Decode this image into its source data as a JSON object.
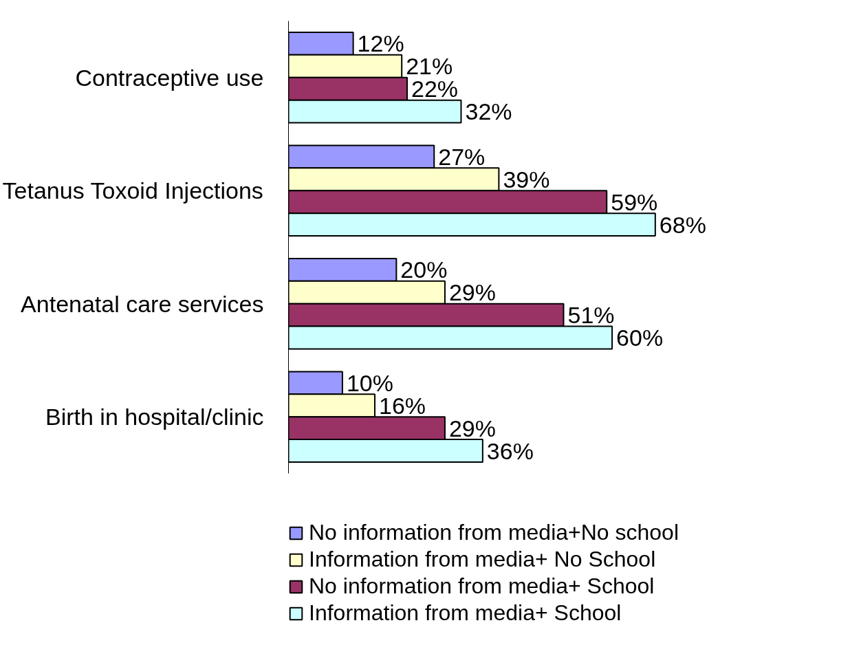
{
  "chart_data": {
    "type": "bar",
    "orientation": "horizontal",
    "categories": [
      "Contraceptive use",
      "Tetanus Toxoid Injections",
      "Antenatal care services",
      "Birth in hospital/clinic"
    ],
    "series": [
      {
        "name": "No information from media+No school",
        "color": "#9999ff",
        "values": [
          12,
          27,
          20,
          10
        ],
        "value_labels": [
          "12%",
          "27%",
          "20%",
          "10%"
        ]
      },
      {
        "name": "Information from media+ No School",
        "color": "#ffffcc",
        "values": [
          21,
          39,
          29,
          16
        ],
        "value_labels": [
          "21%",
          "39%",
          "29%",
          "16%"
        ]
      },
      {
        "name": "No information from media+ School",
        "color": "#993366",
        "values": [
          22,
          59,
          51,
          29
        ],
        "value_labels": [
          "22%",
          "59%",
          "51%",
          "29%"
        ]
      },
      {
        "name": "Information from media+ School",
        "color": "#ccffff",
        "values": [
          32,
          68,
          60,
          36
        ],
        "value_labels": [
          "32%",
          "68%",
          "60%",
          "36%"
        ]
      }
    ],
    "grid": false,
    "legend": "bottom"
  }
}
